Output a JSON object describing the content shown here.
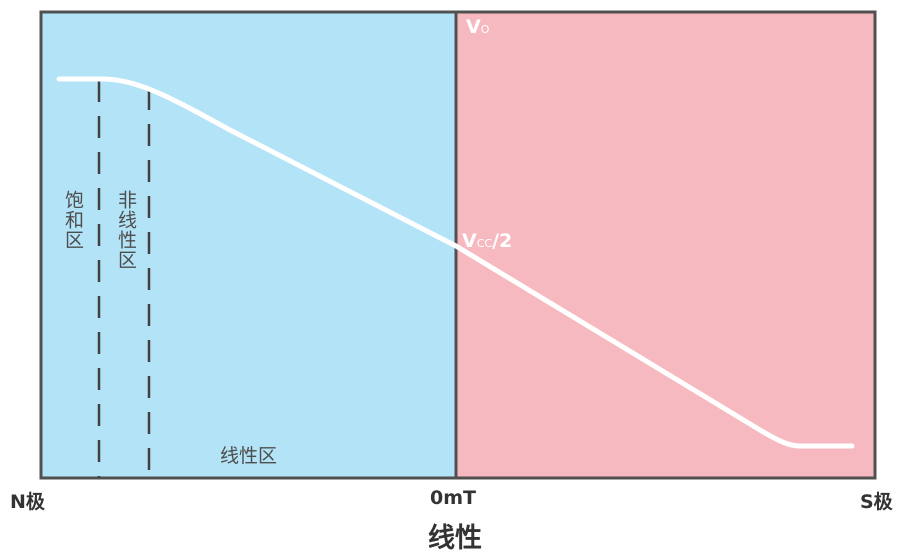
{
  "regions": {
    "saturation": "饱和区",
    "nonlinear": "非线性区",
    "linear": "线性区"
  },
  "output": {
    "vo_main": "V",
    "vo_sub": "O",
    "vcc_main": "V",
    "vcc_sub": "CC",
    "vcc_suffix": "/2"
  },
  "axis": {
    "left": "N极",
    "center": "0mT",
    "right": "S极"
  },
  "caption": "线性",
  "colors": {
    "left_panel": "#b3e3f7",
    "right_panel": "#f7b9c0",
    "curve": "#ffffff",
    "border": "#505050"
  }
}
